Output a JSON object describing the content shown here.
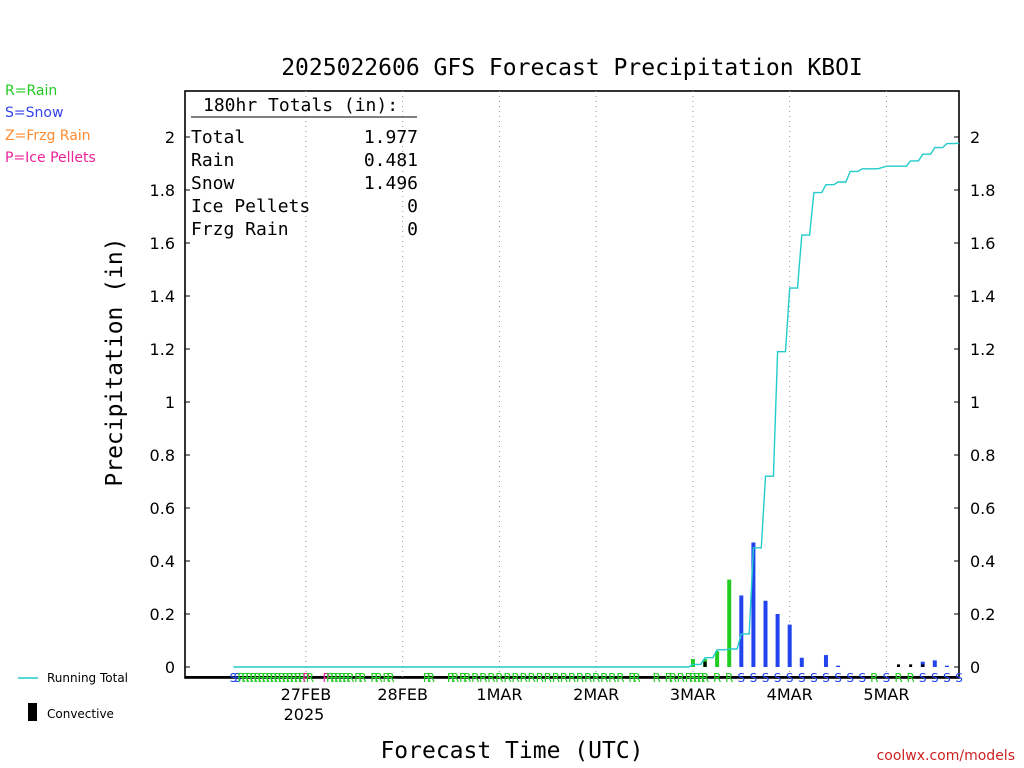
{
  "legend_keys": [
    {
      "text": "R=Rain",
      "color": "#22cc22"
    },
    {
      "text": "S=Snow",
      "color": "#3344ee"
    },
    {
      "text": "Z=Frzg Rain",
      "color": "#ff8c33"
    },
    {
      "text": "P=Ice Pellets",
      "color": "#ee2299"
    }
  ],
  "watermark": "coolwx.com/models",
  "chart_data": {
    "type": "bar",
    "title": "2025022606 GFS Forecast Precipitation KBOI",
    "xlabel": "Forecast Time (UTC)",
    "ylabel": "Precipitation (in)",
    "ylim": [
      0,
      2.2
    ],
    "y_ticks": [
      0,
      0.2,
      0.4,
      0.6,
      0.8,
      1,
      1.2,
      1.4,
      1.6,
      1.8,
      2
    ],
    "y_tick_labels": [
      "0",
      "0.2",
      "0.4",
      "0.6",
      "0.8",
      "1",
      "1.2",
      "1.4",
      "1.6",
      "1.8",
      "2"
    ],
    "xlim_hours": [
      -12,
      180
    ],
    "x_ticks": [
      {
        "hour": 18,
        "label": "27FEB",
        "sublabel": "2025"
      },
      {
        "hour": 42,
        "label": "28FEB",
        "sublabel": ""
      },
      {
        "hour": 66,
        "label": "1MAR",
        "sublabel": ""
      },
      {
        "hour": 90,
        "label": "2MAR",
        "sublabel": ""
      },
      {
        "hour": 114,
        "label": "3MAR",
        "sublabel": ""
      },
      {
        "hour": 138,
        "label": "4MAR",
        "sublabel": ""
      },
      {
        "hour": 162,
        "label": "5MAR",
        "sublabel": ""
      }
    ],
    "grid": "vertical-dotted",
    "totals_box": {
      "heading": "180hr Totals (in):",
      "rows": [
        {
          "label": "Total",
          "value": "1.977"
        },
        {
          "label": "Rain",
          "value": "0.481"
        },
        {
          "label": "Snow",
          "value": "1.496"
        },
        {
          "label": "Ice Pellets",
          "value": "0"
        },
        {
          "label": "Frzg Rain",
          "value": "0"
        }
      ]
    },
    "series": [
      {
        "name": "Running Total",
        "kind": "line",
        "color": "#22cccc",
        "points": [
          [
            0,
            0
          ],
          [
            111,
            0
          ],
          [
            114,
            0.01
          ],
          [
            117,
            0.035
          ],
          [
            120,
            0.065
          ],
          [
            123,
            0.068
          ],
          [
            126,
            0.125
          ],
          [
            129,
            0.45
          ],
          [
            132,
            0.72
          ],
          [
            135,
            1.19
          ],
          [
            138,
            1.43
          ],
          [
            141,
            1.63
          ],
          [
            144,
            1.79
          ],
          [
            147,
            1.82
          ],
          [
            150,
            1.83
          ],
          [
            153,
            1.87
          ],
          [
            156,
            1.88
          ],
          [
            162,
            1.89
          ],
          [
            165,
            1.89
          ],
          [
            168,
            1.91
          ],
          [
            171,
            1.935
          ],
          [
            174,
            1.96
          ],
          [
            177,
            1.975
          ],
          [
            180,
            1.977
          ]
        ]
      },
      {
        "name": "Convective",
        "kind": "bar",
        "color": "#000000",
        "bars": [
          {
            "hour": 117,
            "value": 0.02
          },
          {
            "hour": 165,
            "value": 0.01
          },
          {
            "hour": 168,
            "value": 0.01
          },
          {
            "hour": 171,
            "value": 0.01
          }
        ]
      }
    ],
    "precip_bars": [
      {
        "hour": 114,
        "value": 0.03,
        "type": "rain"
      },
      {
        "hour": 117,
        "value": 0.03,
        "type": "rain"
      },
      {
        "hour": 120,
        "value": 0.06,
        "type": "rain"
      },
      {
        "hour": 123,
        "value": 0.33,
        "type": "rain"
      },
      {
        "hour": 126,
        "value": 0.27,
        "type": "snow"
      },
      {
        "hour": 129,
        "value": 0.47,
        "type": "snow"
      },
      {
        "hour": 132,
        "value": 0.25,
        "type": "snow"
      },
      {
        "hour": 135,
        "value": 0.2,
        "type": "snow"
      },
      {
        "hour": 138,
        "value": 0.16,
        "type": "snow"
      },
      {
        "hour": 141,
        "value": 0.035,
        "type": "snow"
      },
      {
        "hour": 147,
        "value": 0.045,
        "type": "snow"
      },
      {
        "hour": 150,
        "value": 0.005,
        "type": "snow"
      },
      {
        "hour": 171,
        "value": 0.02,
        "type": "snow"
      },
      {
        "hour": 174,
        "value": 0.025,
        "type": "snow"
      },
      {
        "hour": 177,
        "value": 0.005,
        "type": "snow"
      }
    ],
    "ptype_markers": [
      {
        "hour": 0,
        "code": "S"
      },
      {
        "hour": 1,
        "code": "S"
      },
      {
        "hour": 2,
        "code": "R"
      },
      {
        "hour": 3,
        "code": "R"
      },
      {
        "hour": 4,
        "code": "R"
      },
      {
        "hour": 5,
        "code": "R"
      },
      {
        "hour": 6,
        "code": "R"
      },
      {
        "hour": 7,
        "code": "R"
      },
      {
        "hour": 8,
        "code": "R"
      },
      {
        "hour": 9,
        "code": "R"
      },
      {
        "hour": 10,
        "code": "R"
      },
      {
        "hour": 11,
        "code": "R"
      },
      {
        "hour": 12,
        "code": "R"
      },
      {
        "hour": 13,
        "code": "R"
      },
      {
        "hour": 14,
        "code": "R"
      },
      {
        "hour": 15,
        "code": "R"
      },
      {
        "hour": 16,
        "code": "R"
      },
      {
        "hour": 17,
        "code": "R"
      },
      {
        "hour": 18,
        "code": "P"
      },
      {
        "hour": 19,
        "code": "R"
      },
      {
        "hour": 23,
        "code": "P"
      },
      {
        "hour": 24,
        "code": "R"
      },
      {
        "hour": 25,
        "code": "R"
      },
      {
        "hour": 26,
        "code": "R"
      },
      {
        "hour": 27,
        "code": "R"
      },
      {
        "hour": 28,
        "code": "R"
      },
      {
        "hour": 29,
        "code": "R"
      },
      {
        "hour": 31,
        "code": "R"
      },
      {
        "hour": 32,
        "code": "R"
      },
      {
        "hour": 35,
        "code": "R"
      },
      {
        "hour": 36,
        "code": "R"
      },
      {
        "hour": 38,
        "code": "R"
      },
      {
        "hour": 39,
        "code": "R"
      },
      {
        "hour": 48,
        "code": "R"
      },
      {
        "hour": 49,
        "code": "R"
      },
      {
        "hour": 54,
        "code": "R"
      },
      {
        "hour": 55,
        "code": "R"
      },
      {
        "hour": 57,
        "code": "R"
      },
      {
        "hour": 58,
        "code": "R"
      },
      {
        "hour": 60,
        "code": "R"
      },
      {
        "hour": 62,
        "code": "R"
      },
      {
        "hour": 64,
        "code": "R"
      },
      {
        "hour": 66,
        "code": "R"
      },
      {
        "hour": 68,
        "code": "R"
      },
      {
        "hour": 70,
        "code": "R"
      },
      {
        "hour": 72,
        "code": "R"
      },
      {
        "hour": 74,
        "code": "R"
      },
      {
        "hour": 76,
        "code": "R"
      },
      {
        "hour": 78,
        "code": "R"
      },
      {
        "hour": 80,
        "code": "R"
      },
      {
        "hour": 82,
        "code": "R"
      },
      {
        "hour": 84,
        "code": "R"
      },
      {
        "hour": 86,
        "code": "R"
      },
      {
        "hour": 88,
        "code": "R"
      },
      {
        "hour": 90,
        "code": "R"
      },
      {
        "hour": 92,
        "code": "R"
      },
      {
        "hour": 94,
        "code": "R"
      },
      {
        "hour": 96,
        "code": "R"
      },
      {
        "hour": 99,
        "code": "R"
      },
      {
        "hour": 100,
        "code": "R"
      },
      {
        "hour": 105,
        "code": "R"
      },
      {
        "hour": 108,
        "code": "R"
      },
      {
        "hour": 109,
        "code": "R"
      },
      {
        "hour": 111,
        "code": "R"
      },
      {
        "hour": 113,
        "code": "R"
      },
      {
        "hour": 114,
        "code": "R"
      },
      {
        "hour": 115,
        "code": "R"
      },
      {
        "hour": 116,
        "code": "R"
      },
      {
        "hour": 117,
        "code": "R"
      },
      {
        "hour": 120,
        "code": "R"
      },
      {
        "hour": 123,
        "code": "R"
      },
      {
        "hour": 126,
        "code": "S"
      },
      {
        "hour": 129,
        "code": "S"
      },
      {
        "hour": 132,
        "code": "S"
      },
      {
        "hour": 135,
        "code": "S"
      },
      {
        "hour": 138,
        "code": "S"
      },
      {
        "hour": 141,
        "code": "S"
      },
      {
        "hour": 144,
        "code": "S"
      },
      {
        "hour": 147,
        "code": "S"
      },
      {
        "hour": 150,
        "code": "S"
      },
      {
        "hour": 153,
        "code": "S"
      },
      {
        "hour": 156,
        "code": "S"
      },
      {
        "hour": 159,
        "code": "R"
      },
      {
        "hour": 162,
        "code": "S"
      },
      {
        "hour": 165,
        "code": "R"
      },
      {
        "hour": 168,
        "code": "R"
      },
      {
        "hour": 171,
        "code": "S"
      },
      {
        "hour": 174,
        "code": "S"
      },
      {
        "hour": 177,
        "code": "S"
      },
      {
        "hour": 180,
        "code": "S"
      }
    ],
    "colors": {
      "rain": "#22cc22",
      "snow": "#2244ee",
      "frzg_rain": "#ff8c33",
      "ice_pellets": "#ee2299",
      "running_total": "#22cccc",
      "convective": "#000000",
      "watermark": "#cc2222"
    }
  }
}
